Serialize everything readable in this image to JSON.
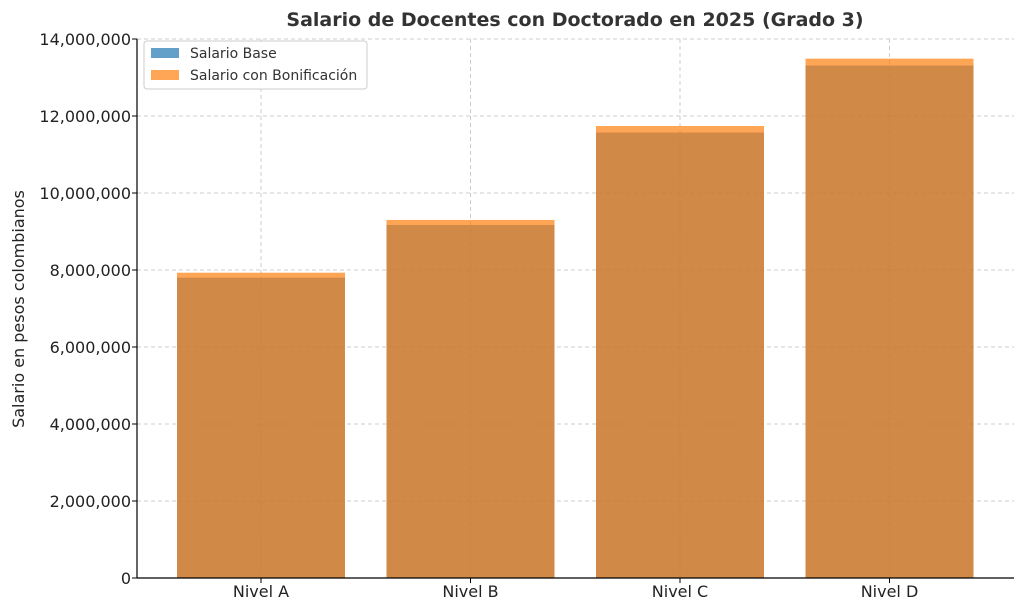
{
  "chart_data": {
    "type": "bar",
    "title": "Salario de Docentes con Doctorado en 2025 (Grado 3)",
    "xlabel": "",
    "ylabel": "Salario en pesos colombianos",
    "categories": [
      "Nivel A",
      "Nivel B",
      "Nivel C",
      "Nivel D"
    ],
    "series": [
      {
        "name": "Salario Base",
        "color": "#1f77b4",
        "opacity": 0.7,
        "values": [
          7800000,
          9170000,
          11570000,
          13310000
        ]
      },
      {
        "name": "Salario con Bonificación",
        "color": "#ff7f0e",
        "opacity": 0.7,
        "values": [
          7930000,
          9300000,
          11740000,
          13490000
        ]
      }
    ],
    "ylim": [
      0,
      14000000
    ],
    "yticks": [
      0,
      2000000,
      4000000,
      6000000,
      8000000,
      10000000,
      12000000,
      14000000
    ],
    "ytick_labels": [
      "0",
      "2,000,000",
      "4,000,000",
      "6,000,000",
      "8,000,000",
      "10,000,000",
      "12,000,000",
      "14,000,000"
    ],
    "grid": true,
    "legend_position": "top-left"
  }
}
